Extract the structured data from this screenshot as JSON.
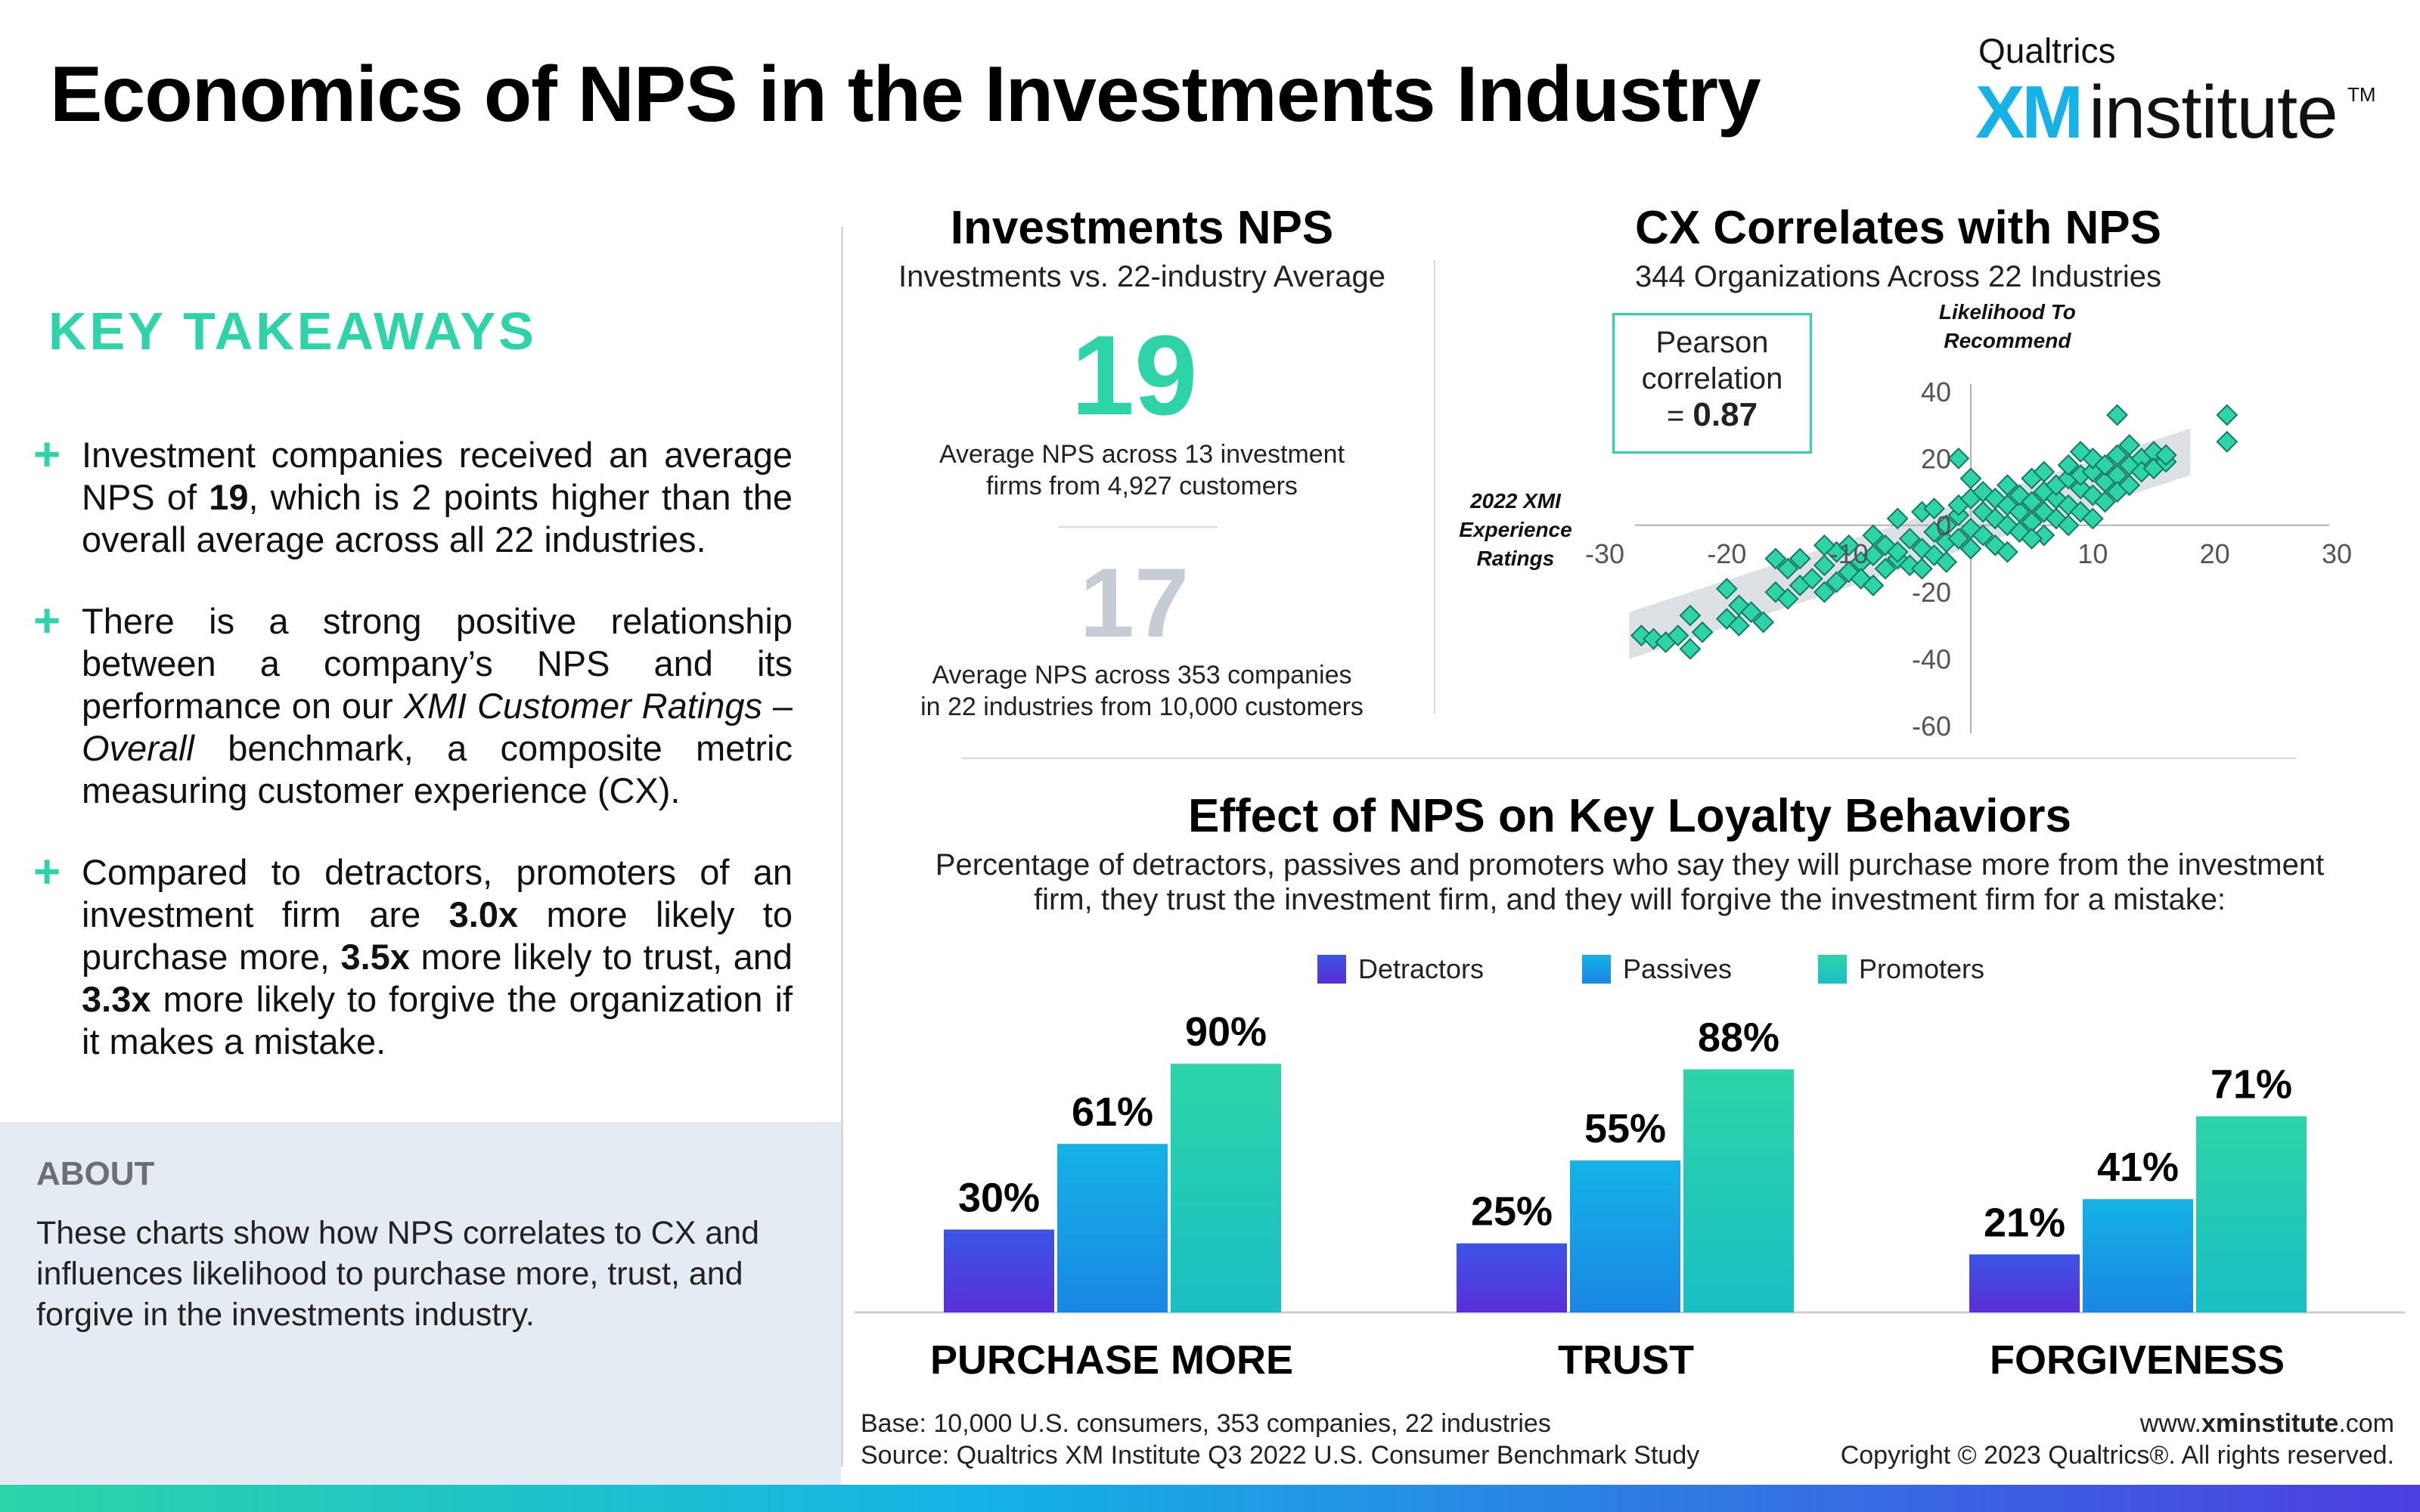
{
  "header": {
    "title": "Economics of NPS in the Investments Industry",
    "logo_top": "Qualtrics",
    "logo_xm": "XM",
    "logo_institute": "institute",
    "logo_tm": "TM"
  },
  "takeaways": {
    "heading": "KEY TAKEAWAYS",
    "b1_pre": "Investment companies received an average NPS of ",
    "b1_bold": "19",
    "b1_post": ", which is 2 points higher than the overall average across all 22 industries.",
    "b2_pre": "There is a strong positive relationship between a company’s NPS and its performance on our ",
    "b2_ital1": "XMI Customer Ratings – Overall",
    "b2_post": " benchmark, a composite metric measuring customer experience (CX).",
    "b3_pre": "Compared to detractors, promoters of an investment firm are ",
    "b3_bold1": "3.0x",
    "b3_mid1": " more likely to purchase more, ",
    "b3_bold2": "3.5x",
    "b3_mid2": " more likely to trust, and ",
    "b3_bold3": "3.3x",
    "b3_post": " more likely to forgive the organization if it makes a mistake."
  },
  "about": {
    "heading": "ABOUT",
    "text": "These charts show how NPS correlates to CX and influences likelihood to purchase more, trust, and forgive in the investments industry."
  },
  "nps": {
    "title": "Investments NPS",
    "subtitle": "Investments vs. 22-industry Average",
    "value_main": "19",
    "note_main_1": "Average NPS across 13 investment",
    "note_main_2": "firms from 4,927 customers",
    "value_avg": "17",
    "note_avg_1": "Average NPS across 353 companies",
    "note_avg_2": "in 22 industries from 10,000 customers"
  },
  "scatter_section": {
    "title": "CX Correlates with NPS",
    "subtitle": "344 Organizations Across 22 Industries",
    "pearson_1": "Pearson",
    "pearson_2": "correlation",
    "pearson_eq": "= ",
    "pearson_val": "0.87"
  },
  "bar_section": {
    "title": "Effect of NPS on Key Loyalty Behaviors",
    "subtitle_1": "Percentage of detractors, passives and promoters who say they will purchase more from the investment",
    "subtitle_2": "firm, they trust the investment firm, and they will forgive the investment firm for a mistake:"
  },
  "footer": {
    "base": "Base: 10,000 U.S. consumers, 353 companies, 22 industries",
    "source": "Source: Qualtrics XM Institute Q3 2022 U.S. Consumer Benchmark Study",
    "url_pre": "www.",
    "url_bold": "xminstitute",
    "url_post": ".com",
    "copyright": "Copyright © 2023 Qualtrics®. All rights reserved."
  },
  "colors": {
    "accent": "#2dd4a8",
    "detractors": "#4c3ee0",
    "passives": "#14b3e6",
    "promoters": "#2dd4a8"
  },
  "chart_data": [
    {
      "type": "scatter",
      "xlabel": "2022 XMI Experience Ratings",
      "ylabel": "Likelihood To Recommend",
      "xlim": [
        -30,
        30
      ],
      "ylim": [
        -60,
        40
      ],
      "xticks": [
        "-30",
        "-20",
        "-10",
        "10",
        "20",
        "30"
      ],
      "yticks": [
        "40",
        "20",
        "0",
        "-20",
        "-40",
        "-60"
      ],
      "points": [
        [
          -27,
          -33
        ],
        [
          -26,
          -34
        ],
        [
          -25,
          -35
        ],
        [
          -24,
          -33
        ],
        [
          -23,
          -37
        ],
        [
          -23,
          -27
        ],
        [
          -22,
          -32
        ],
        [
          -20,
          -28
        ],
        [
          -19,
          -30
        ],
        [
          -19,
          -24
        ],
        [
          -18,
          -26
        ],
        [
          -17,
          -29
        ],
        [
          -16,
          -20
        ],
        [
          -15,
          -22
        ],
        [
          -15,
          -13
        ],
        [
          -14,
          -18
        ],
        [
          -14,
          -10
        ],
        [
          -13,
          -16
        ],
        [
          -12,
          -20
        ],
        [
          -12,
          -12
        ],
        [
          -11,
          -17
        ],
        [
          -11,
          -8
        ],
        [
          -10,
          -14
        ],
        [
          -10,
          -6
        ],
        [
          -9,
          -11
        ],
        [
          -9,
          -16
        ],
        [
          -8,
          -9
        ],
        [
          -8,
          -3
        ],
        [
          -7,
          -13
        ],
        [
          -7,
          -6
        ],
        [
          -6,
          -10
        ],
        [
          -6,
          2
        ],
        [
          -5,
          -4
        ],
        [
          -5,
          -12
        ],
        [
          -4,
          -7
        ],
        [
          -4,
          4
        ],
        [
          -3,
          -2
        ],
        [
          -3,
          -9
        ],
        [
          -3,
          5
        ],
        [
          -2,
          0
        ],
        [
          -2,
          -5
        ],
        [
          -2,
          -11
        ],
        [
          -1,
          3
        ],
        [
          -1,
          -4
        ],
        [
          -1,
          6
        ],
        [
          0,
          -1
        ],
        [
          0,
          8
        ],
        [
          0,
          -7
        ],
        [
          1,
          4
        ],
        [
          1,
          -3
        ],
        [
          1,
          10
        ],
        [
          2,
          2
        ],
        [
          2,
          -6
        ],
        [
          2,
          8
        ],
        [
          3,
          6
        ],
        [
          3,
          0
        ],
        [
          3,
          12
        ],
        [
          4,
          4
        ],
        [
          4,
          -2
        ],
        [
          4,
          9
        ],
        [
          5,
          7
        ],
        [
          5,
          14
        ],
        [
          5,
          1
        ],
        [
          6,
          10
        ],
        [
          6,
          4
        ],
        [
          6,
          16
        ],
        [
          7,
          8
        ],
        [
          7,
          12
        ],
        [
          7,
          2
        ],
        [
          8,
          14
        ],
        [
          8,
          6
        ],
        [
          8,
          18
        ],
        [
          9,
          11
        ],
        [
          9,
          15
        ],
        [
          9,
          4
        ],
        [
          10,
          16
        ],
        [
          10,
          9
        ],
        [
          10,
          20
        ],
        [
          11,
          13
        ],
        [
          11,
          18
        ],
        [
          11,
          7
        ],
        [
          12,
          15
        ],
        [
          12,
          21
        ],
        [
          12,
          10
        ],
        [
          13,
          18
        ],
        [
          13,
          24
        ],
        [
          13,
          12
        ],
        [
          14,
          20
        ],
        [
          14,
          16
        ],
        [
          15,
          22
        ],
        [
          15,
          17
        ],
        [
          16,
          19
        ],
        [
          12,
          33
        ],
        [
          -1,
          20
        ],
        [
          -12,
          -6
        ],
        [
          -4,
          -13
        ],
        [
          6,
          -3
        ],
        [
          9,
          22
        ],
        [
          16,
          21
        ],
        [
          21,
          33
        ],
        [
          21,
          25
        ],
        [
          -20,
          -19
        ],
        [
          -8,
          -18
        ],
        [
          3,
          -8
        ],
        [
          8,
          0
        ],
        [
          -16,
          -10
        ],
        [
          0,
          14
        ],
        [
          -6,
          -8
        ],
        [
          5,
          -4
        ],
        [
          10,
          2
        ]
      ]
    },
    {
      "type": "bar",
      "categories": [
        "PURCHASE MORE",
        "TRUST",
        "FORGIVENESS"
      ],
      "series": [
        {
          "name": "Detractors",
          "values": [
            30,
            25,
            21
          ]
        },
        {
          "name": "Passives",
          "values": [
            61,
            55,
            41
          ]
        },
        {
          "name": "Promoters",
          "values": [
            90,
            88,
            71
          ]
        }
      ],
      "value_labels": [
        [
          "30%",
          "61%",
          "90%"
        ],
        [
          "25%",
          "55%",
          "88%"
        ],
        [
          "21%",
          "41%",
          "71%"
        ]
      ],
      "ylim": [
        0,
        100
      ],
      "legend": "top-center"
    }
  ]
}
